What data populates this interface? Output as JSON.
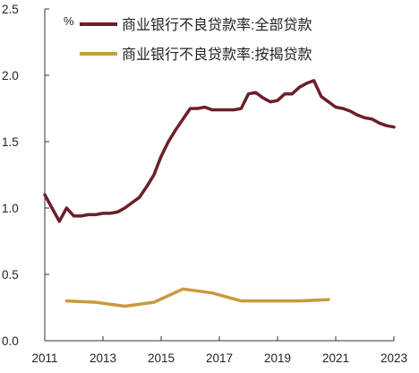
{
  "chart_data": {
    "type": "line",
    "unit_label": "%",
    "xlim": [
      2011,
      2023
    ],
    "ylim": [
      0,
      2.5
    ],
    "x_ticks": [
      "2011",
      "2013",
      "2015",
      "2017",
      "2019",
      "2021",
      "2023"
    ],
    "y_ticks": [
      "0.0",
      "0.5",
      "1.0",
      "1.5",
      "2.0",
      "2.5"
    ],
    "grid": false,
    "legend_position": "top-right",
    "series": [
      {
        "name": "商业银行不良贷款率:全部贷款",
        "color": "#6b1f2a",
        "x": [
          2011.0,
          2011.25,
          2011.5,
          2011.75,
          2012.0,
          2012.25,
          2012.5,
          2012.75,
          2013.0,
          2013.25,
          2013.5,
          2013.75,
          2014.0,
          2014.25,
          2014.5,
          2014.75,
          2015.0,
          2015.25,
          2015.5,
          2015.75,
          2016.0,
          2016.25,
          2016.5,
          2016.75,
          2017.0,
          2017.25,
          2017.5,
          2017.75,
          2018.0,
          2018.25,
          2018.5,
          2018.75,
          2019.0,
          2019.25,
          2019.5,
          2019.75,
          2020.0,
          2020.25,
          2020.5,
          2020.75,
          2021.0,
          2021.25,
          2021.5,
          2021.75,
          2022.0,
          2022.25,
          2022.5,
          2022.75,
          2023.0
        ],
        "values": [
          1.1,
          1.0,
          0.9,
          1.0,
          0.94,
          0.94,
          0.95,
          0.95,
          0.96,
          0.96,
          0.97,
          1.0,
          1.04,
          1.08,
          1.16,
          1.25,
          1.39,
          1.5,
          1.59,
          1.67,
          1.75,
          1.75,
          1.76,
          1.74,
          1.74,
          1.74,
          1.74,
          1.75,
          1.86,
          1.87,
          1.83,
          1.8,
          1.81,
          1.86,
          1.86,
          1.91,
          1.94,
          1.96,
          1.84,
          1.8,
          1.76,
          1.75,
          1.73,
          1.7,
          1.68,
          1.67,
          1.64,
          1.62,
          1.61
        ]
      },
      {
        "name": "商业银行不良贷款率:按揭贷款",
        "color": "#c99a3c",
        "x": [
          2011.75,
          2012.75,
          2013.75,
          2014.75,
          2015.75,
          2016.75,
          2017.75,
          2018.75,
          2019.75,
          2020.75
        ],
        "values": [
          0.3,
          0.29,
          0.26,
          0.29,
          0.39,
          0.36,
          0.3,
          0.3,
          0.3,
          0.31
        ]
      }
    ]
  }
}
